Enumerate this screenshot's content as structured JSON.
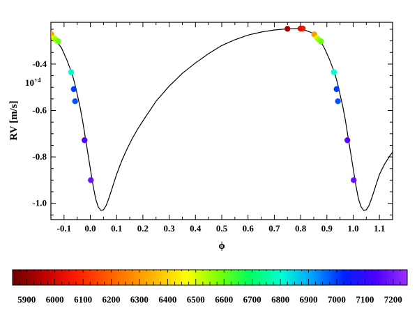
{
  "chart_data": {
    "type": "scatter",
    "title": "",
    "xlabel": "ϕ",
    "ylabel": "RV [m/s]",
    "y_multiplier_label": "10+4",
    "xlim": [
      -0.15,
      1.15
    ],
    "ylim": [
      -1.07,
      -0.22
    ],
    "x_ticks": [
      -0.1,
      0.0,
      0.1,
      0.2,
      0.3,
      0.4,
      0.5,
      0.6,
      0.7,
      0.8,
      0.9,
      1.0,
      1.1
    ],
    "x_tick_labels": [
      "-0.1",
      "0.0",
      "0.1",
      "0.2",
      "0.3",
      "0.4",
      "0.5",
      "0.6",
      "0.7",
      "0.8",
      "0.9",
      "1.0",
      "1.1"
    ],
    "y_ticks": [
      -0.4,
      -0.6,
      -0.8,
      -1.0
    ],
    "y_tick_labels": [
      "-0.4",
      "-0.6",
      "-0.8",
      "-1.0"
    ],
    "grid": false,
    "model_curve": {
      "x": [
        -0.15,
        -0.14,
        -0.13,
        -0.12,
        -0.11,
        -0.1,
        -0.09,
        -0.08,
        -0.07,
        -0.06,
        -0.05,
        -0.04,
        -0.03,
        -0.02,
        -0.01,
        0.0,
        0.01,
        0.02,
        0.03,
        0.04,
        0.05,
        0.06,
        0.07,
        0.08,
        0.09,
        0.1,
        0.12,
        0.14,
        0.16,
        0.18,
        0.2,
        0.25,
        0.3,
        0.35,
        0.4,
        0.45,
        0.5,
        0.55,
        0.6,
        0.65,
        0.7,
        0.75,
        0.8,
        0.85,
        0.86,
        0.87,
        0.88,
        0.89,
        0.9,
        0.91,
        0.92,
        0.93,
        0.94,
        0.95,
        0.96,
        0.97,
        0.98,
        0.99,
        1.0,
        1.01,
        1.02,
        1.03,
        1.04,
        1.05,
        1.06,
        1.07,
        1.08,
        1.09,
        1.1,
        1.12,
        1.14,
        1.15
      ],
      "y": [
        -0.27,
        -0.285,
        -0.3,
        -0.315,
        -0.33,
        -0.355,
        -0.38,
        -0.41,
        -0.44,
        -0.48,
        -0.53,
        -0.58,
        -0.64,
        -0.71,
        -0.78,
        -0.85,
        -0.92,
        -0.98,
        -1.015,
        -1.03,
        -1.028,
        -1.01,
        -0.98,
        -0.945,
        -0.91,
        -0.875,
        -0.815,
        -0.765,
        -0.72,
        -0.68,
        -0.645,
        -0.56,
        -0.495,
        -0.44,
        -0.395,
        -0.355,
        -0.32,
        -0.295,
        -0.275,
        -0.262,
        -0.253,
        -0.248,
        -0.247,
        -0.268,
        -0.28,
        -0.295,
        -0.31,
        -0.33,
        -0.355,
        -0.38,
        -0.41,
        -0.44,
        -0.48,
        -0.53,
        -0.58,
        -0.64,
        -0.71,
        -0.78,
        -0.85,
        -0.92,
        -0.98,
        -1.015,
        -1.03,
        -1.028,
        -1.01,
        -0.98,
        -0.945,
        -0.91,
        -0.875,
        -0.83,
        -0.795,
        -0.78
      ]
    },
    "points": [
      {
        "x": -0.148,
        "y": -0.272,
        "temp": 6300
      },
      {
        "x": -0.138,
        "y": -0.287,
        "temp": 6500
      },
      {
        "x": -0.132,
        "y": -0.294,
        "temp": 6550
      },
      {
        "x": -0.122,
        "y": -0.302,
        "temp": 6600
      },
      {
        "x": -0.073,
        "y": -0.435,
        "temp": 6800
      },
      {
        "x": -0.063,
        "y": -0.508,
        "temp": 7000
      },
      {
        "x": -0.058,
        "y": -0.56,
        "temp": 6980
      },
      {
        "x": -0.022,
        "y": -0.728,
        "temp": 7150
      },
      {
        "x": 0.002,
        "y": -0.9,
        "temp": 7180
      },
      {
        "x": 0.75,
        "y": -0.248,
        "temp": 5920
      },
      {
        "x": 0.8,
        "y": -0.247,
        "temp": 6000
      },
      {
        "x": 0.808,
        "y": -0.247,
        "temp": 6050
      },
      {
        "x": 0.852,
        "y": -0.272,
        "temp": 6300
      },
      {
        "x": 0.862,
        "y": -0.287,
        "temp": 6500
      },
      {
        "x": 0.868,
        "y": -0.294,
        "temp": 6550
      },
      {
        "x": 0.878,
        "y": -0.302,
        "temp": 6600
      },
      {
        "x": 0.927,
        "y": -0.435,
        "temp": 6800
      },
      {
        "x": 0.937,
        "y": -0.508,
        "temp": 7000
      },
      {
        "x": 0.942,
        "y": -0.56,
        "temp": 6980
      },
      {
        "x": 0.978,
        "y": -0.728,
        "temp": 7150
      },
      {
        "x": 1.002,
        "y": -0.9,
        "temp": 7180
      }
    ],
    "colorbar": {
      "range": [
        5850,
        7250
      ],
      "tick_labels": [
        "5900",
        "6000",
        "6100",
        "6200",
        "6300",
        "6400",
        "6500",
        "6600",
        "6700",
        "6800",
        "6900",
        "7000",
        "7100",
        "7200"
      ],
      "tick_values": [
        5900,
        6000,
        6100,
        6200,
        6300,
        6400,
        6500,
        6600,
        6700,
        6800,
        6900,
        7000,
        7100,
        7200
      ],
      "colormap": "rainbow"
    }
  }
}
